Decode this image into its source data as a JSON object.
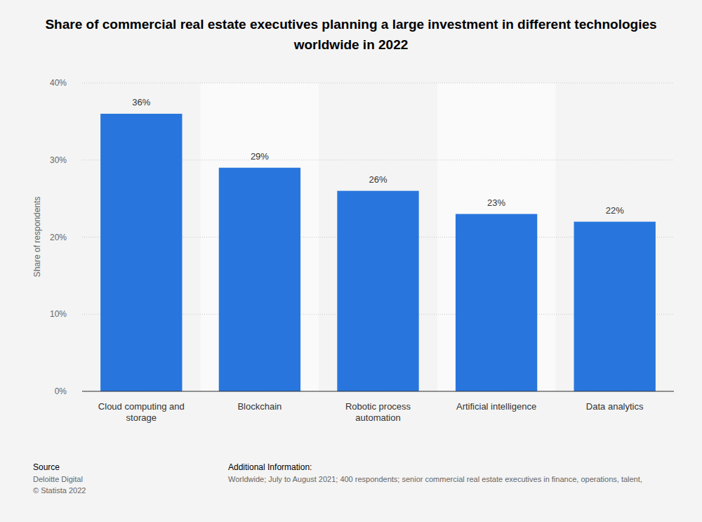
{
  "chart_data": {
    "type": "bar",
    "title": "Share of commercial real estate executives planning a large investment in different technologies worldwide in 2022",
    "y_label": "Share of respondents",
    "categories": [
      "Cloud computing and storage",
      "Blockchain",
      "Robotic process automation",
      "Artificial intelligence",
      "Data analytics"
    ],
    "values": [
      36,
      29,
      26,
      23,
      22
    ],
    "value_labels": [
      "36%",
      "29%",
      "26%",
      "23%",
      "22%"
    ],
    "color": "#2876dd",
    "ylim": [
      0,
      40
    ],
    "yticks": [
      {
        "value": 0,
        "label": "0%"
      },
      {
        "value": 10,
        "label": "10%"
      },
      {
        "value": 20,
        "label": "20%"
      },
      {
        "value": 30,
        "label": "30%"
      },
      {
        "value": 40,
        "label": "40%"
      }
    ],
    "grid": true,
    "data_labels": true,
    "source": {
      "heading": "Source",
      "lines": [
        "Deloitte Digital",
        "© Statista 2022"
      ]
    },
    "additional_information": {
      "heading": "Additional Information:",
      "text": "Worldwide; July to August 2021; 400 respondents; senior commercial real estate executives in finance, operations, talent,"
    }
  }
}
